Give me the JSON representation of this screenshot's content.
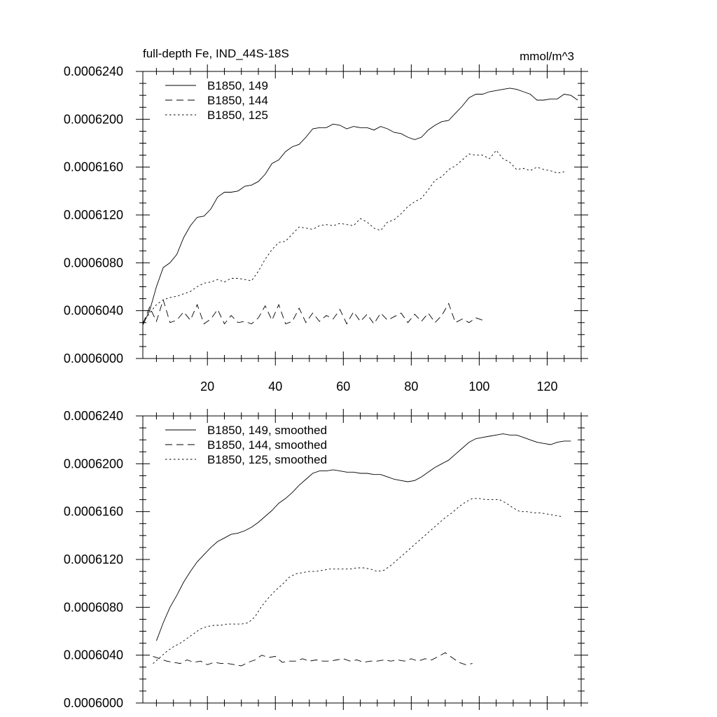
{
  "chart_data": [
    {
      "type": "line",
      "title": "full-depth Fe, IND_44S-18S",
      "units": "mmol/m^3",
      "xlabel": "",
      "ylabel": "",
      "xlim": [
        1,
        130
      ],
      "ylim": [
        0.0006,
        0.000624
      ],
      "xticks": [
        20,
        40,
        60,
        80,
        100,
        120
      ],
      "xtick_labels": [
        "20",
        "40",
        "60",
        "80",
        "100",
        "120"
      ],
      "yticks": [
        0.0006,
        0.000604,
        0.000608,
        0.000612,
        0.000616,
        0.00062,
        0.000624
      ],
      "ytick_labels": [
        "0.0006000",
        "0.0006040",
        "0.0006080",
        "0.0006120",
        "0.0006160",
        "0.0006200",
        "0.0006240"
      ],
      "legend_position": "top-left",
      "series": [
        {
          "name": "B1850, 149",
          "style": "solid",
          "x": [
            1,
            3,
            5,
            7,
            9,
            11,
            13,
            15,
            17,
            19,
            21,
            23,
            25,
            27,
            29,
            31,
            33,
            35,
            37,
            39,
            41,
            43,
            45,
            47,
            49,
            51,
            53,
            55,
            57,
            59,
            61,
            63,
            65,
            67,
            69,
            71,
            73,
            75,
            77,
            79,
            81,
            83,
            85,
            87,
            89,
            91,
            93,
            95,
            97,
            99,
            101,
            103,
            105,
            107,
            109,
            111,
            113,
            115,
            117,
            119,
            121,
            123,
            125,
            127,
            129
          ],
          "values": [
            0.0006028,
            0.000604,
            0.000606,
            0.0006076,
            0.000608,
            0.0006087,
            0.0006101,
            0.0006111,
            0.0006118,
            0.0006119,
            0.0006125,
            0.0006135,
            0.0006139,
            0.0006139,
            0.000614,
            0.0006144,
            0.0006145,
            0.0006148,
            0.0006154,
            0.0006163,
            0.0006166,
            0.0006173,
            0.0006177,
            0.0006179,
            0.0006185,
            0.0006192,
            0.0006193,
            0.0006193,
            0.0006196,
            0.0006195,
            0.0006192,
            0.0006194,
            0.0006193,
            0.0006193,
            0.0006191,
            0.0006194,
            0.0006192,
            0.0006189,
            0.0006188,
            0.0006185,
            0.0006183,
            0.0006185,
            0.0006191,
            0.0006195,
            0.0006198,
            0.0006199,
            0.0006205,
            0.0006211,
            0.0006218,
            0.0006221,
            0.0006221,
            0.0006223,
            0.0006224,
            0.0006225,
            0.0006226,
            0.0006225,
            0.0006223,
            0.0006221,
            0.0006216,
            0.0006216,
            0.0006217,
            0.0006217,
            0.0006221,
            0.000622,
            0.0006216
          ]
        },
        {
          "name": "B1850, 144",
          "style": "dashed",
          "x": [
            1,
            3,
            5,
            7,
            9,
            11,
            13,
            15,
            17,
            19,
            21,
            23,
            25,
            27,
            29,
            31,
            33,
            35,
            37,
            39,
            41,
            43,
            45,
            47,
            49,
            51,
            53,
            55,
            57,
            59,
            61,
            63,
            65,
            67,
            69,
            71,
            73,
            75,
            77,
            79,
            81,
            83,
            85,
            87,
            89,
            91,
            93,
            95,
            97,
            99,
            101
          ],
          "values": [
            0.0006029,
            0.0006043,
            0.0006031,
            0.0006049,
            0.000603,
            0.0006032,
            0.0006039,
            0.0006032,
            0.0006045,
            0.0006029,
            0.0006033,
            0.0006041,
            0.0006029,
            0.0006036,
            0.000603,
            0.0006031,
            0.0006029,
            0.0006034,
            0.0006044,
            0.0006032,
            0.0006045,
            0.0006029,
            0.0006031,
            0.0006042,
            0.000603,
            0.0006038,
            0.0006031,
            0.0006036,
            0.0006033,
            0.0006041,
            0.0006029,
            0.0006039,
            0.0006031,
            0.0006037,
            0.0006029,
            0.0006038,
            0.0006032,
            0.0006035,
            0.0006038,
            0.000603,
            0.0006037,
            0.0006031,
            0.0006038,
            0.000603,
            0.0006036,
            0.0006046,
            0.000603,
            0.0006033,
            0.000603,
            0.0006034,
            0.0006032
          ]
        },
        {
          "name": "B1850, 125",
          "style": "dotted",
          "x": [
            1,
            3,
            5,
            7,
            9,
            11,
            13,
            15,
            17,
            19,
            21,
            23,
            25,
            27,
            29,
            31,
            33,
            35,
            37,
            39,
            41,
            43,
            45,
            47,
            49,
            51,
            53,
            55,
            57,
            59,
            61,
            63,
            65,
            67,
            69,
            71,
            73,
            75,
            77,
            79,
            81,
            83,
            85,
            87,
            89,
            91,
            93,
            95,
            97,
            99,
            101,
            103,
            105,
            107,
            109,
            111,
            113,
            115,
            117,
            119,
            121,
            123,
            125
          ],
          "values": [
            0.000603,
            0.0006038,
            0.0006045,
            0.0006049,
            0.0006051,
            0.0006052,
            0.0006054,
            0.0006056,
            0.000606,
            0.0006063,
            0.0006064,
            0.0006066,
            0.0006064,
            0.0006067,
            0.0006067,
            0.0006066,
            0.0006065,
            0.0006073,
            0.0006083,
            0.0006091,
            0.0006097,
            0.0006098,
            0.0006104,
            0.000611,
            0.0006109,
            0.0006108,
            0.0006111,
            0.0006112,
            0.0006111,
            0.0006113,
            0.0006112,
            0.0006111,
            0.0006117,
            0.0006114,
            0.0006109,
            0.0006107,
            0.0006114,
            0.0006116,
            0.0006121,
            0.0006127,
            0.0006131,
            0.0006134,
            0.0006141,
            0.0006149,
            0.0006152,
            0.0006158,
            0.0006161,
            0.0006166,
            0.0006171,
            0.000617,
            0.000617,
            0.0006167,
            0.0006174,
            0.0006167,
            0.0006164,
            0.0006158,
            0.0006159,
            0.0006157,
            0.000616,
            0.0006158,
            0.0006157,
            0.0006155,
            0.0006156
          ]
        }
      ]
    },
    {
      "type": "line",
      "title": "",
      "xlabel": "",
      "ylabel": "",
      "xlim": [
        1,
        130
      ],
      "ylim": [
        0.0006,
        0.000624
      ],
      "xticks": [
        20,
        40,
        60,
        80,
        100,
        120
      ],
      "xtick_labels": [],
      "yticks": [
        0.0006,
        0.000604,
        0.000608,
        0.000612,
        0.000616,
        0.00062,
        0.000624
      ],
      "ytick_labels": [
        "0.0006000",
        "0.0006040",
        "0.0006080",
        "0.0006120",
        "0.0006160",
        "0.0006200",
        "0.0006240"
      ],
      "legend_position": "top-left",
      "series": [
        {
          "name": "B1850, 149, smoothed",
          "style": "solid",
          "x": [
            5,
            7,
            9,
            11,
            13,
            15,
            17,
            19,
            21,
            23,
            25,
            27,
            29,
            31,
            33,
            35,
            37,
            39,
            41,
            43,
            45,
            47,
            49,
            51,
            53,
            55,
            57,
            59,
            61,
            63,
            65,
            67,
            69,
            71,
            73,
            75,
            77,
            79,
            81,
            83,
            85,
            87,
            89,
            91,
            93,
            95,
            97,
            99,
            101,
            103,
            105,
            107,
            109,
            111,
            113,
            115,
            117,
            119,
            121,
            123,
            125,
            127
          ],
          "values": [
            0.0006052,
            0.0006067,
            0.000608,
            0.000609,
            0.0006101,
            0.000611,
            0.0006118,
            0.0006124,
            0.000613,
            0.0006135,
            0.0006138,
            0.0006141,
            0.0006142,
            0.0006144,
            0.0006147,
            0.0006151,
            0.0006156,
            0.0006161,
            0.0006167,
            0.0006171,
            0.0006176,
            0.0006182,
            0.0006187,
            0.0006192,
            0.0006194,
            0.0006194,
            0.0006195,
            0.0006194,
            0.0006193,
            0.0006193,
            0.0006192,
            0.0006192,
            0.0006191,
            0.0006191,
            0.0006189,
            0.0006187,
            0.0006186,
            0.0006185,
            0.0006186,
            0.0006189,
            0.0006193,
            0.0006197,
            0.00062,
            0.0006203,
            0.0006208,
            0.0006213,
            0.0006218,
            0.0006221,
            0.0006222,
            0.0006223,
            0.0006224,
            0.0006225,
            0.0006224,
            0.0006224,
            0.0006222,
            0.000622,
            0.0006218,
            0.0006217,
            0.0006216,
            0.0006218,
            0.0006219,
            0.0006219
          ]
        },
        {
          "name": "B1850, 144, smoothed",
          "style": "dashed",
          "x": [
            4,
            6,
            8,
            10,
            12,
            14,
            16,
            18,
            20,
            22,
            24,
            26,
            28,
            30,
            32,
            34,
            36,
            38,
            40,
            42,
            44,
            46,
            48,
            50,
            52,
            54,
            56,
            58,
            60,
            62,
            64,
            66,
            68,
            70,
            72,
            74,
            76,
            78,
            80,
            82,
            84,
            86,
            88,
            90,
            92,
            94,
            96,
            98
          ],
          "values": [
            0.0006039,
            0.0006037,
            0.0006035,
            0.0006034,
            0.0006033,
            0.0006036,
            0.0006034,
            0.0006035,
            0.0006032,
            0.0006034,
            0.0006033,
            0.0006033,
            0.0006032,
            0.0006031,
            0.0006034,
            0.0006036,
            0.000604,
            0.0006038,
            0.0006039,
            0.0006034,
            0.0006035,
            0.0006035,
            0.0006037,
            0.0006035,
            0.0006036,
            0.0006035,
            0.0006035,
            0.0006036,
            0.0006037,
            0.0006035,
            0.0006036,
            0.0006034,
            0.0006035,
            0.0006035,
            0.0006036,
            0.0006035,
            0.0006036,
            0.0006035,
            0.0006037,
            0.0006035,
            0.0006037,
            0.0006036,
            0.0006039,
            0.0006042,
            0.0006038,
            0.0006034,
            0.0006032,
            0.0006033
          ]
        },
        {
          "name": "B1850, 125, smoothed",
          "style": "dotted",
          "x": [
            4,
            6,
            8,
            10,
            12,
            14,
            16,
            18,
            20,
            22,
            24,
            26,
            28,
            30,
            32,
            34,
            36,
            38,
            40,
            42,
            44,
            46,
            48,
            50,
            52,
            54,
            56,
            58,
            60,
            62,
            64,
            66,
            68,
            70,
            72,
            74,
            76,
            78,
            80,
            82,
            84,
            86,
            88,
            90,
            92,
            94,
            96,
            98,
            100,
            102,
            104,
            106,
            108,
            110,
            112,
            114,
            116,
            118,
            120,
            122,
            124
          ],
          "values": [
            0.0006033,
            0.0006038,
            0.0006043,
            0.0006047,
            0.000605,
            0.0006054,
            0.0006058,
            0.0006062,
            0.0006064,
            0.0006065,
            0.0006065,
            0.0006066,
            0.0006066,
            0.0006066,
            0.0006067,
            0.0006072,
            0.0006081,
            0.0006088,
            0.0006094,
            0.0006099,
            0.0006105,
            0.0006108,
            0.0006109,
            0.000611,
            0.000611,
            0.0006111,
            0.0006112,
            0.0006112,
            0.0006112,
            0.0006112,
            0.0006113,
            0.0006113,
            0.0006112,
            0.000611,
            0.0006111,
            0.0006115,
            0.000612,
            0.0006125,
            0.000613,
            0.0006135,
            0.000614,
            0.0006145,
            0.000615,
            0.0006155,
            0.0006159,
            0.0006164,
            0.0006168,
            0.0006171,
            0.0006171,
            0.000617,
            0.000617,
            0.000617,
            0.0006167,
            0.0006163,
            0.000616,
            0.000616,
            0.0006159,
            0.0006159,
            0.0006158,
            0.0006157,
            0.0006156
          ]
        }
      ]
    }
  ]
}
